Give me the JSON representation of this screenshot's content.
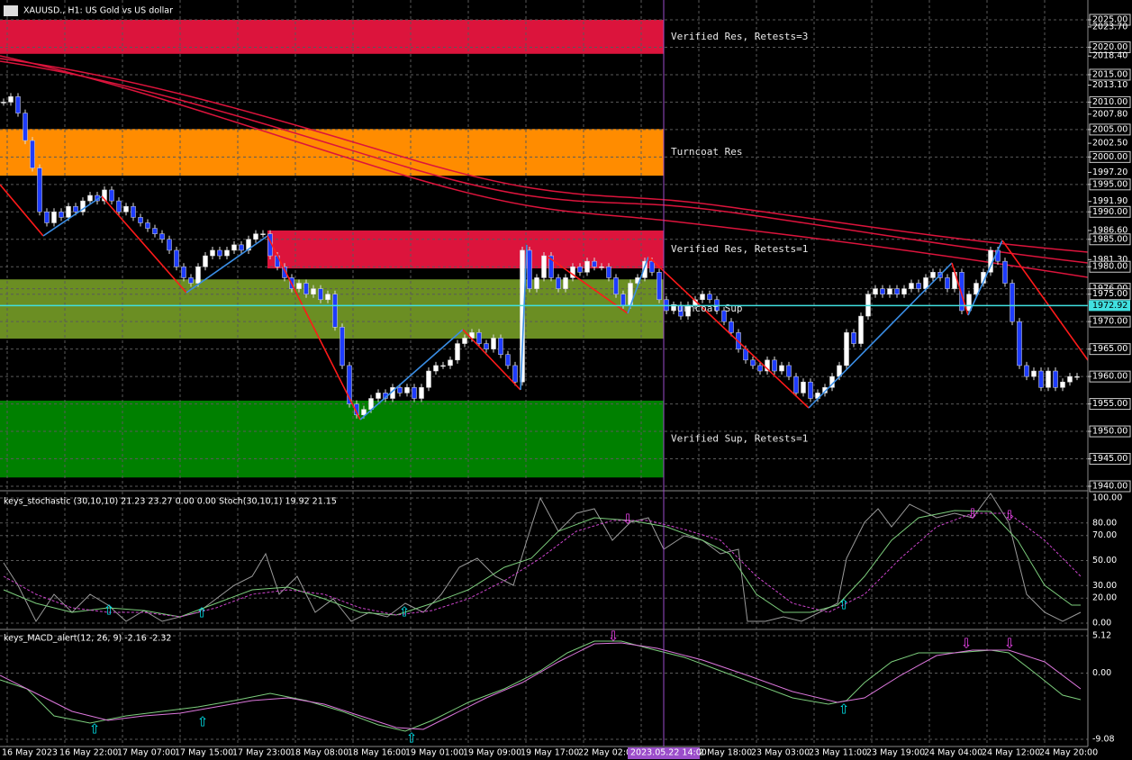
{
  "title": "XAUUSD., H1: US Gold vs US dollar",
  "price_axis": [
    {
      "value": 2025,
      "label": "2025.00"
    },
    {
      "value": 2023.7,
      "label": "2023.70"
    },
    {
      "value": 2020,
      "label": "2020.00"
    },
    {
      "value": 2018.4,
      "label": "2018.40"
    },
    {
      "value": 2015,
      "label": "2015.00"
    },
    {
      "value": 2013.1,
      "label": "2013.10"
    },
    {
      "value": 2010,
      "label": "2010.00"
    },
    {
      "value": 2007.8,
      "label": "2007.80"
    },
    {
      "value": 2005,
      "label": "2005.00"
    },
    {
      "value": 2002.5,
      "label": "2002.50"
    },
    {
      "value": 2000,
      "label": "2000.00"
    },
    {
      "value": 1997.2,
      "label": "1997.20"
    },
    {
      "value": 1995,
      "label": "1995.00"
    },
    {
      "value": 1991.9,
      "label": "1991.90"
    },
    {
      "value": 1990,
      "label": "1990.00"
    },
    {
      "value": 1986.6,
      "label": "1986.60"
    },
    {
      "value": 1985,
      "label": "1985.00"
    },
    {
      "value": 1981.3,
      "label": "1981.30"
    },
    {
      "value": 1980,
      "label": "1980.00"
    },
    {
      "value": 1976,
      "label": "1976.00"
    },
    {
      "value": 1975,
      "label": "1975.00"
    },
    {
      "value": 1970,
      "label": "1970.00"
    },
    {
      "value": 1965,
      "label": "1965.00"
    },
    {
      "value": 1960,
      "label": "1960.00"
    },
    {
      "value": 1955,
      "label": "1955.00"
    },
    {
      "value": 1950,
      "label": "1950.00"
    },
    {
      "value": 1945,
      "label": "1945.00"
    },
    {
      "value": 1940,
      "label": "1940.00"
    }
  ],
  "current_price": {
    "value": 1972.92,
    "label": "1972.92"
  },
  "zones": [
    {
      "label": "Verified Res, Retests=3",
      "top": 2025,
      "bottom": 2018.8,
      "color": "#dc143c"
    },
    {
      "label": "Turncoat Res",
      "top": 2005.1,
      "bottom": 1996.6,
      "color": "#ff8c00"
    },
    {
      "label": "Verified Res, Retests=1",
      "top": 1986.6,
      "bottom": 1979.7,
      "color": "#dc143c"
    },
    {
      "label": "Turncoat Sup",
      "top": 1977.7,
      "bottom": 1966.9,
      "color": "#6b8e23"
    },
    {
      "label": "Verified Sup, Retests=1",
      "top": 1955.6,
      "bottom": 1941.6,
      "color": "#008000"
    }
  ],
  "closes": [
    2010,
    2011,
    2008,
    2003,
    1998,
    1990,
    1988,
    1990,
    1989,
    1991,
    1990,
    1992,
    1993,
    1992,
    1994,
    1992,
    1990,
    1991,
    1989,
    1988,
    1987,
    1986,
    1985,
    1983,
    1980,
    1978,
    1977,
    1980,
    1982,
    1983,
    1982,
    1983,
    1984,
    1983,
    1985,
    1986,
    1986,
    1982,
    1980,
    1978,
    1976,
    1977,
    1975,
    1976,
    1974,
    1975,
    1969,
    1962,
    1955,
    1953,
    1954,
    1956,
    1957,
    1956,
    1958,
    1957,
    1958,
    1956,
    1958,
    1961,
    1962,
    1962,
    1963,
    1966,
    1967,
    1968,
    1966,
    1965,
    1967,
    1964,
    1962,
    1959,
    1983,
    1976,
    1978,
    1982,
    1978,
    1976,
    1978,
    1980,
    1979,
    1981,
    1980,
    1980,
    1978,
    1975,
    1973,
    1977,
    1978,
    1981,
    1979,
    1974,
    1972,
    1973,
    1971,
    1973,
    1974,
    1975,
    1974,
    1972,
    1970,
    1968,
    1965,
    1963,
    1962,
    1961,
    1963,
    1961,
    1962,
    1960,
    1957,
    1959,
    1956,
    1957,
    1958,
    1960,
    1962,
    1968,
    1966,
    1971,
    1975,
    1976,
    1975,
    1976,
    1975,
    1976,
    1977,
    1976,
    1978,
    1979,
    1978,
    1976,
    1979,
    1972,
    1975,
    1977,
    1979,
    1983,
    1981,
    1977,
    1970,
    1962,
    1960,
    1961,
    1958,
    1961,
    1958,
    1959,
    1960,
    1960
  ],
  "stochastic": {
    "label": "keys_stochastic (30,10,10) 21.23 23.27 0.00 0.00 Stoch(30,10,1) 19.92 21.15",
    "ylim": [
      0,
      100
    ],
    "ticks": [
      {
        "value": 100,
        "label": "100.00"
      },
      {
        "value": 80,
        "label": "80.00"
      },
      {
        "value": 70,
        "label": "70.00"
      },
      {
        "value": 50,
        "label": "50.00"
      },
      {
        "value": 30,
        "label": "30.00"
      },
      {
        "value": 20,
        "label": "20.00"
      },
      {
        "value": 0,
        "label": "0.00"
      }
    ]
  },
  "macd": {
    "label": "keys_MACD_alert(12, 26, 9) -2.16 -2.32",
    "ylim": [
      -9.08,
      5.12
    ],
    "ticks": [
      {
        "value": 5.12,
        "label": "5.12"
      },
      {
        "value": 0,
        "label": "0.00"
      },
      {
        "value": -9.08,
        "label": "-9.08"
      }
    ]
  },
  "time_axis": [
    "16 May 2023",
    "16 May 22:00",
    "17 May 07:00",
    "17 May 15:00",
    "17 May 23:00",
    "18 May 08:00",
    "18 May 16:00",
    "19 May 01:00",
    "19 May 09:00",
    "19 May 17:00",
    "22 May 02:00",
    "22 May 18:00",
    "23 May 03:00",
    "23 May 11:00",
    "23 May 19:00",
    "24 May 04:00",
    "24 May 12:00",
    "24 May 20:00"
  ],
  "cursor_time": "2023.05.22 14:00"
}
